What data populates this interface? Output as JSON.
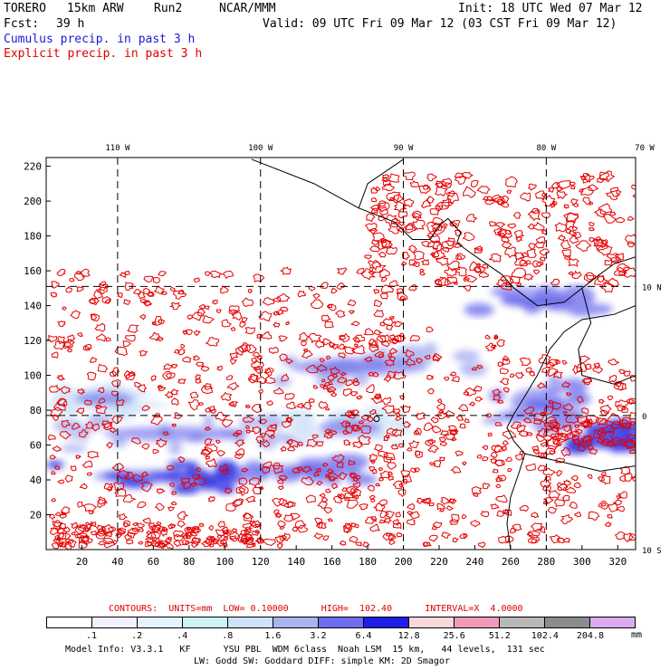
{
  "header": {
    "model": "TORERO",
    "resolution": "15km ARW",
    "run": "Run2",
    "org": "NCAR/MMM",
    "init": "Init: 18 UTC Wed 07 Mar 12",
    "fcst_label": "Fcst:",
    "fcst_value": "39 h",
    "valid": "Valid: 09 UTC Fri 09 Mar 12 (03 CST Fri 09 Mar 12)",
    "field1": "Cumulus precip. in past 3 h",
    "field2": "Explicit precip. in past 3 h"
  },
  "colors": {
    "field1": "#1a1ad6",
    "field2": "#e00000",
    "contour": "#e60000",
    "coast": "#000000"
  },
  "chart_data": {
    "type": "map",
    "x_ticks": [
      20,
      40,
      60,
      80,
      100,
      120,
      140,
      160,
      180,
      200,
      220,
      240,
      260,
      280,
      300,
      320
    ],
    "y_ticks": [
      20,
      40,
      60,
      80,
      100,
      120,
      140,
      160,
      180,
      200,
      220
    ],
    "xlim": [
      0,
      330
    ],
    "ylim": [
      0,
      225
    ],
    "lon_labels": [
      {
        "text": "110 W",
        "x": 40
      },
      {
        "text": "100 W",
        "x": 120
      },
      {
        "text": "90 W",
        "x": 200
      },
      {
        "text": "80 W",
        "x": 280
      },
      {
        "text": "70 W",
        "x": 355
      }
    ],
    "lat_labels": [
      {
        "text": "10 N",
        "y": 151
      },
      {
        "text": "0",
        "y": 77
      },
      {
        "text": "10 S",
        "y": 0
      }
    ],
    "grid_x": [
      40,
      120,
      200,
      280
    ],
    "grid_y": [
      151,
      77
    ],
    "blue_regions": [
      {
        "x": [
          5,
          110
        ],
        "y": [
          34,
          50
        ],
        "level": "6.4"
      },
      {
        "x": [
          5,
          140
        ],
        "y": [
          58,
          75
        ],
        "level": "1.6"
      },
      {
        "x": [
          100,
          180
        ],
        "y": [
          40,
          52
        ],
        "level": "3.2"
      },
      {
        "x": [
          110,
          240
        ],
        "y": [
          95,
          115
        ],
        "level": "1.6"
      },
      {
        "x": [
          250,
          300
        ],
        "y": [
          70,
          100
        ],
        "level": "3.2"
      },
      {
        "x": [
          292,
          330
        ],
        "y": [
          58,
          72
        ],
        "level": "6.4"
      },
      {
        "x": [
          240,
          310
        ],
        "y": [
          135,
          150
        ],
        "level": "3.2"
      },
      {
        "x": [
          5,
          60
        ],
        "y": [
          78,
          95
        ],
        "level": "0.8"
      },
      {
        "x": [
          140,
          200
        ],
        "y": [
          60,
          80
        ],
        "level": "0.8"
      }
    ]
  },
  "legend": {
    "contour_text": "CONTOURS:  UNITS=mm  LOW= 0.10000      HIGH=  102.40      INTERVAL=X  4.0000",
    "ticks": [
      ".1",
      ".2",
      ".4",
      ".8",
      "1.6",
      "3.2",
      "6.4",
      "12.8",
      "25.6",
      "51.2",
      "102.4",
      "204.8"
    ],
    "unit": "mm",
    "colors": [
      "#ffffff",
      "#f0f0ff",
      "#e4f4ff",
      "#ccf4f4",
      "#cfe3f8",
      "#aab4f0",
      "#6e6ef0",
      "#1e1ee6",
      "#f8d8d8",
      "#f09ab8",
      "#b8b8b8",
      "#8c8c8c",
      "#dcaaf0"
    ]
  },
  "footer": {
    "line1": "Model Info: V3.3.1   KF      YSU PBL  WDM 6class  Noah LSM  15 km,   44 levels,  131 sec",
    "line2": "LW: Godd SW: Goddard DIFF: simple KM: 2D Smagor"
  }
}
